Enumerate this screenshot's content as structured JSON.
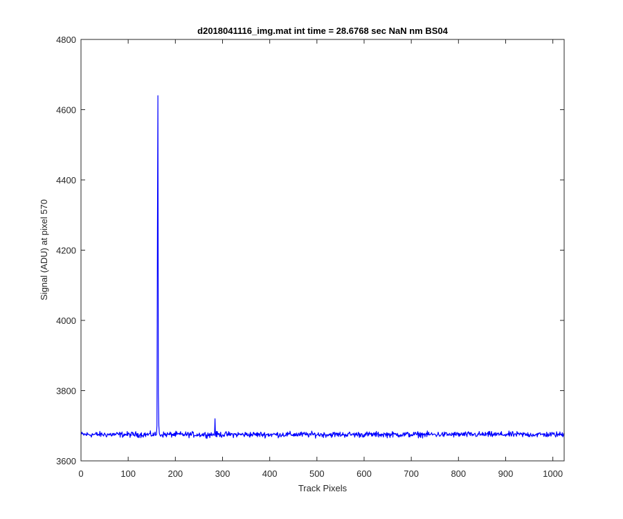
{
  "chart_data": {
    "type": "line",
    "title": "d2018041116_img.mat int time = 28.6768 sec  NaN nm BS04",
    "xlabel": "Track Pixels",
    "ylabel": "Signal (ADU) at pixel 570",
    "xlim": [
      0,
      1024
    ],
    "ylim": [
      3600,
      4800
    ],
    "x_ticks": [
      0,
      100,
      200,
      300,
      400,
      500,
      600,
      700,
      800,
      900,
      1000
    ],
    "y_ticks": [
      3600,
      3800,
      4000,
      4200,
      4400,
      4600,
      4800
    ],
    "x_tick_labels": [
      "0",
      "100",
      "200",
      "300",
      "400",
      "500",
      "600",
      "700",
      "800",
      "900",
      "1000"
    ],
    "y_tick_labels": [
      "3600",
      "3800",
      "4000",
      "4200",
      "4400",
      "4600",
      "4800"
    ],
    "grid": false,
    "series": [
      {
        "color": "#0000ff",
        "baseline": 3675,
        "noise_amplitude": 12,
        "n_points": 1024,
        "features": [
          {
            "x": 161,
            "y": 3700
          },
          {
            "x": 162,
            "y": 4255
          },
          {
            "x": 163,
            "y": 4640
          },
          {
            "x": 164,
            "y": 3790
          },
          {
            "x": 165,
            "y": 3700
          },
          {
            "x": 284,
            "y": 3720
          }
        ]
      }
    ]
  }
}
